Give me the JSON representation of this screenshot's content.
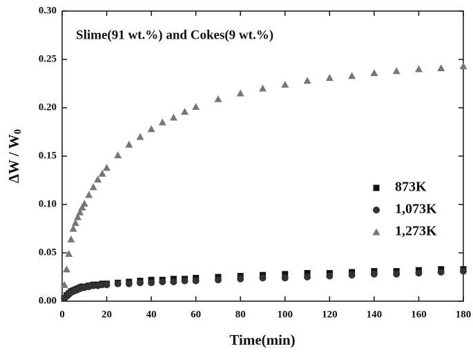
{
  "chart_data": {
    "type": "scatter",
    "annotation": "Slime(91 wt.%) and Cokes(9 wt.%)",
    "xlabel": "Time(min)",
    "ylabel": "ΔW / W",
    "ylabel_sub": "0",
    "x": [
      1,
      2,
      3,
      4,
      5,
      6,
      7,
      8,
      9,
      10,
      12,
      14,
      16,
      18,
      20,
      25,
      30,
      35,
      40,
      45,
      50,
      55,
      60,
      70,
      80,
      90,
      100,
      110,
      120,
      130,
      140,
      150,
      160,
      170,
      180
    ],
    "series": [
      {
        "name": "873K",
        "marker": "square",
        "color": "#111111",
        "values": [
          0.003,
          0.006,
          0.008,
          0.01,
          0.011,
          0.012,
          0.013,
          0.014,
          0.015,
          0.015,
          0.016,
          0.017,
          0.017,
          0.018,
          0.018,
          0.019,
          0.02,
          0.021,
          0.022,
          0.022,
          0.023,
          0.023,
          0.024,
          0.025,
          0.026,
          0.027,
          0.028,
          0.029,
          0.029,
          0.03,
          0.031,
          0.031,
          0.032,
          0.033,
          0.033
        ]
      },
      {
        "name": "1,073K",
        "marker": "circle",
        "color": "#333333",
        "values": [
          0.003,
          0.005,
          0.007,
          0.009,
          0.01,
          0.011,
          0.012,
          0.013,
          0.014,
          0.014,
          0.015,
          0.016,
          0.016,
          0.017,
          0.017,
          0.018,
          0.018,
          0.019,
          0.019,
          0.02,
          0.02,
          0.021,
          0.021,
          0.022,
          0.023,
          0.024,
          0.024,
          0.025,
          0.026,
          0.027,
          0.028,
          0.028,
          0.029,
          0.03,
          0.031
        ]
      },
      {
        "name": "1,273K",
        "marker": "triangle",
        "color": "#777777",
        "values": [
          0.017,
          0.033,
          0.049,
          0.064,
          0.075,
          0.081,
          0.087,
          0.092,
          0.097,
          0.101,
          0.11,
          0.118,
          0.126,
          0.132,
          0.138,
          0.151,
          0.162,
          0.17,
          0.178,
          0.185,
          0.19,
          0.196,
          0.201,
          0.209,
          0.215,
          0.22,
          0.224,
          0.228,
          0.231,
          0.233,
          0.236,
          0.238,
          0.24,
          0.241,
          0.243
        ]
      }
    ],
    "xlim": [
      0,
      180
    ],
    "ylim": [
      0,
      0.3
    ],
    "xticks": [
      0,
      20,
      40,
      60,
      80,
      100,
      120,
      140,
      160,
      180
    ],
    "yticks": [
      {
        "value": 0,
        "label": "0.00"
      },
      {
        "value": 0.05,
        "label": "0.05"
      },
      {
        "value": 0.1,
        "label": "0.10"
      },
      {
        "value": 0.15,
        "label": "0.15"
      },
      {
        "value": 0.2,
        "label": "0.20"
      },
      {
        "value": 0.25,
        "label": "0.25"
      },
      {
        "value": 0.3,
        "label": "0.30"
      }
    ],
    "legend": "right"
  }
}
